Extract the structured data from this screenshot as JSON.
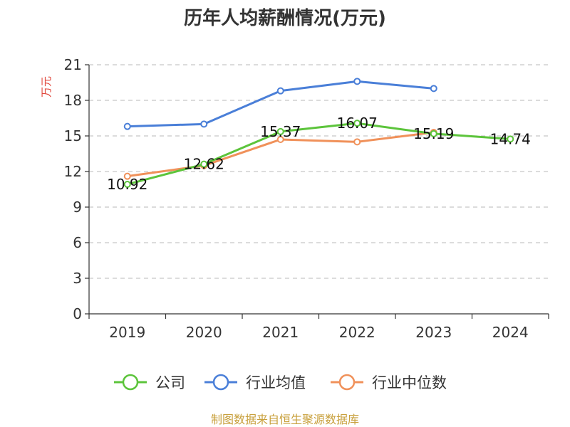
{
  "chart_data": {
    "type": "line",
    "title": "历年人均薪酬情况(万元)",
    "ylabel": "万元",
    "xlabel": "",
    "categories": [
      "2019",
      "2020",
      "2021",
      "2022",
      "2023",
      "2024"
    ],
    "ylim": [
      0,
      21
    ],
    "yticks": [
      0,
      3,
      6,
      9,
      12,
      15,
      18,
      21
    ],
    "grid": true,
    "legend_position": "bottom",
    "series": [
      {
        "name": "公司",
        "color": "#5cc43b",
        "values": [
          10.92,
          12.62,
          15.37,
          16.07,
          15.19,
          14.74
        ],
        "labels": [
          "10.92",
          "12.62",
          "15.37",
          "16.07",
          "15.19",
          "14.74"
        ]
      },
      {
        "name": "行业均值",
        "color": "#4a7fd8",
        "values": [
          15.8,
          16.0,
          18.8,
          19.6,
          19.0,
          null
        ]
      },
      {
        "name": "行业中位数",
        "color": "#f0915a",
        "values": [
          11.6,
          12.5,
          14.7,
          14.5,
          15.3,
          null
        ]
      }
    ]
  },
  "footer": {
    "source": "制图数据来自恒生聚源数据库"
  }
}
